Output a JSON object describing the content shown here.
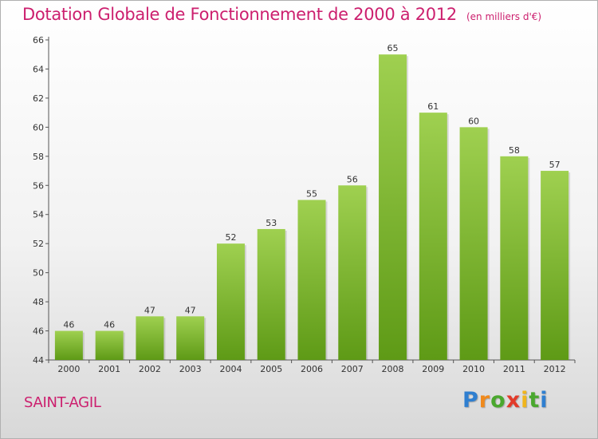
{
  "title": "Dotation Globale de Fonctionnement de 2000 à 2012",
  "subtitle": "(en milliers d'€)",
  "commune": "SAINT-AGIL",
  "brand": {
    "letters": [
      "P",
      "r",
      "o",
      "x",
      "i",
      "t",
      "i"
    ]
  },
  "colors": {
    "title": "#cc1f6e",
    "bar_top": "#9fd050",
    "bar_bottom": "#5e9a16",
    "axis": "#555555"
  },
  "chart_data": {
    "type": "bar",
    "title": "Dotation Globale de Fonctionnement de 2000 à 2012",
    "subtitle": "(en milliers d'€)",
    "categories": [
      "2000",
      "2001",
      "2002",
      "2003",
      "2004",
      "2005",
      "2006",
      "2007",
      "2008",
      "2009",
      "2010",
      "2011",
      "2012"
    ],
    "values": [
      46,
      46,
      47,
      47,
      52,
      53,
      55,
      56,
      65,
      61,
      60,
      58,
      57
    ],
    "ylim": [
      44,
      66
    ],
    "yticks": [
      44,
      46,
      48,
      50,
      52,
      54,
      56,
      58,
      60,
      62,
      64,
      66
    ],
    "xlabel": "",
    "ylabel": "",
    "grid": false,
    "legend": "none"
  }
}
